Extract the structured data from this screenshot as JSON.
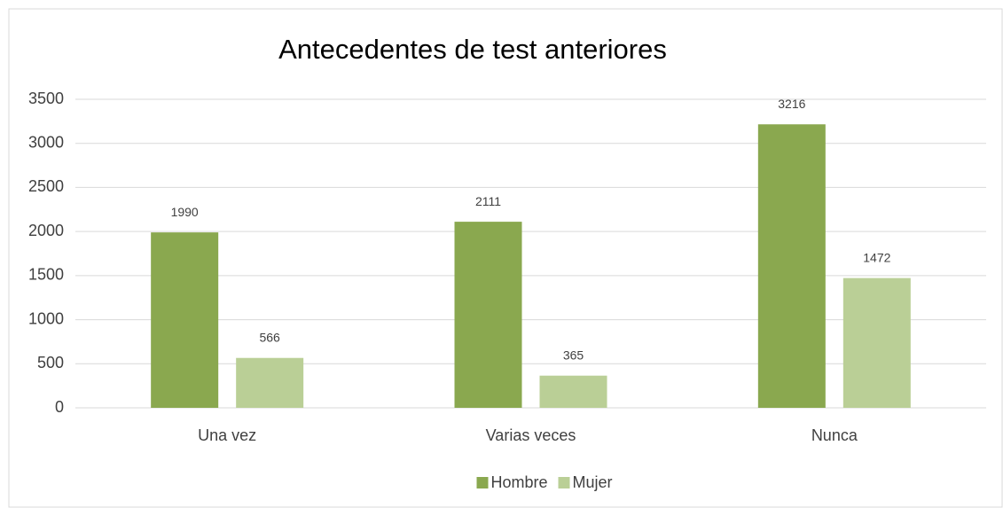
{
  "chart_data": {
    "type": "bar",
    "title": "Antecedentes de test anteriores",
    "categories": [
      "Una vez",
      "Varias veces",
      "Nunca"
    ],
    "series": [
      {
        "name": "Hombre",
        "color": "#8aa84f",
        "values": [
          1990,
          2111,
          3216
        ]
      },
      {
        "name": "Mujer",
        "color": "#bacf96",
        "values": [
          566,
          365,
          1472
        ]
      }
    ],
    "ylim": [
      0,
      3500
    ],
    "yticks": [
      0,
      500,
      1000,
      1500,
      2000,
      2500,
      3000,
      3500
    ],
    "grid": true,
    "legend": "bottom"
  }
}
